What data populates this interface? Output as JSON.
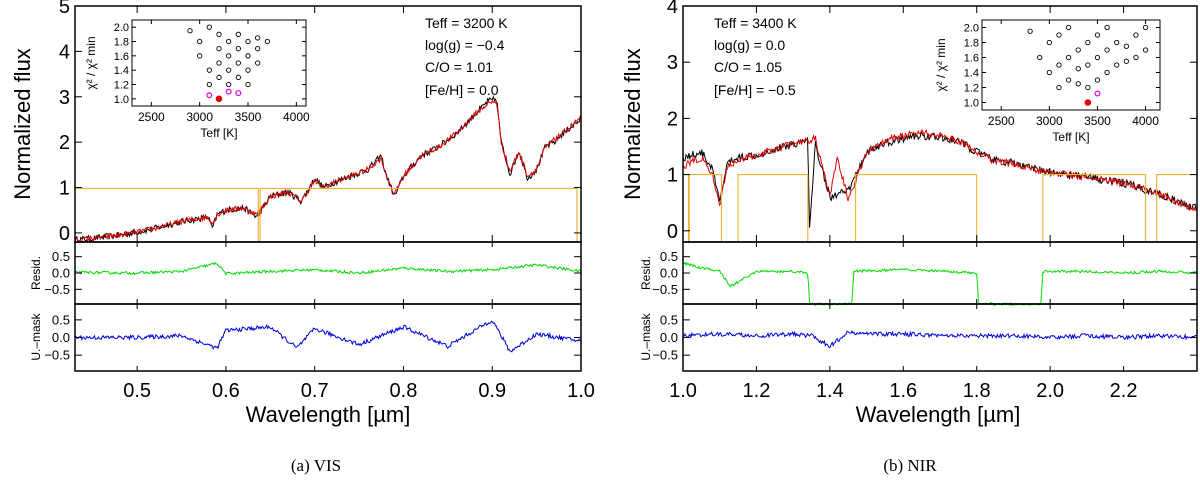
{
  "chart_data": [
    {
      "type": "line",
      "caption": "(a) VIS",
      "xlabel": "Wavelength [µm]",
      "xlim": [
        0.43,
        1.0
      ],
      "xticks": [
        0.5,
        0.6,
        0.7,
        0.8,
        0.9,
        1.0
      ],
      "xtick_labels": [
        "0.5",
        "0.6",
        "0.7",
        "0.8",
        "0.9",
        "1.0"
      ],
      "main": {
        "ylabel": "Normalized flux",
        "ylim": [
          -0.2,
          5
        ],
        "yticks": [
          0,
          1,
          2,
          3,
          4,
          5
        ],
        "ytick_labels": [
          "0",
          "1",
          "2",
          "3",
          "4",
          "5"
        ],
        "series": [
          {
            "name": "observed",
            "color": "#000000",
            "x": [
              0.43,
              0.45,
              0.48,
              0.5,
              0.52,
              0.55,
              0.58,
              0.585,
              0.59,
              0.6,
              0.62,
              0.635,
              0.65,
              0.67,
              0.685,
              0.7,
              0.71,
              0.72,
              0.74,
              0.76,
              0.775,
              0.78,
              0.79,
              0.8,
              0.82,
              0.84,
              0.86,
              0.88,
              0.895,
              0.905,
              0.91,
              0.92,
              0.93,
              0.94,
              0.95,
              0.96,
              0.97,
              0.98,
              1.0
            ],
            "y": [
              -0.15,
              -0.12,
              -0.05,
              0.02,
              0.1,
              0.25,
              0.35,
              0.1,
              0.4,
              0.5,
              0.55,
              0.35,
              0.8,
              0.9,
              0.7,
              1.2,
              1.0,
              1.1,
              1.25,
              1.4,
              1.7,
              1.3,
              0.8,
              1.25,
              1.7,
              1.9,
              2.2,
              2.6,
              2.9,
              2.95,
              2.0,
              1.3,
              1.8,
              1.2,
              1.4,
              1.9,
              2.0,
              2.2,
              2.5
            ]
          },
          {
            "name": "model",
            "color": "#e00000",
            "x": [
              0.43,
              0.45,
              0.48,
              0.5,
              0.52,
              0.55,
              0.58,
              0.585,
              0.59,
              0.6,
              0.62,
              0.635,
              0.65,
              0.67,
              0.685,
              0.7,
              0.71,
              0.72,
              0.74,
              0.76,
              0.775,
              0.78,
              0.79,
              0.8,
              0.82,
              0.84,
              0.86,
              0.88,
              0.895,
              0.905,
              0.91,
              0.92,
              0.93,
              0.94,
              0.95,
              0.96,
              0.97,
              0.98,
              1.0
            ],
            "y": [
              -0.15,
              -0.12,
              -0.05,
              0.02,
              0.1,
              0.25,
              0.35,
              0.2,
              0.4,
              0.5,
              0.55,
              0.4,
              0.8,
              0.9,
              0.7,
              1.15,
              1.0,
              1.1,
              1.25,
              1.4,
              1.65,
              1.3,
              0.85,
              1.25,
              1.7,
              1.9,
              2.2,
              2.6,
              2.85,
              2.9,
              2.0,
              1.35,
              1.8,
              1.25,
              1.4,
              1.9,
              2.05,
              2.2,
              2.55
            ]
          },
          {
            "name": "mask",
            "color": "#f0b030",
            "x": [
              0.43,
              0.6365,
              0.6365,
              0.6385,
              0.6385,
              0.9955,
              0.9955,
              1.0
            ],
            "y": [
              0.98,
              0.98,
              -0.2,
              -0.2,
              0.98,
              0.98,
              -0.2,
              -0.2
            ]
          }
        ],
        "annotations": [
          "Teff = 3200 K",
          "log(g) = −0.4",
          "C/O = 1.01",
          "[Fe/H] = 0.0"
        ]
      },
      "resid": {
        "ylabel": "Resid.",
        "ylim": [
          -0.95,
          0.95
        ],
        "yticks": [
          0.5,
          0.0,
          -0.5
        ],
        "ytick_labels": [
          "0.5",
          "0.0",
          "−0.5"
        ],
        "series": [
          {
            "name": "residual",
            "color": "#00dd00",
            "x": [
              0.43,
              0.5,
              0.55,
              0.59,
              0.6,
              0.65,
              0.7,
              0.75,
              0.8,
              0.85,
              0.9,
              0.95,
              1.0
            ],
            "y": [
              0.02,
              0.0,
              0.05,
              0.3,
              -0.02,
              0.05,
              0.1,
              0.0,
              0.15,
              0.05,
              0.1,
              0.25,
              0.05
            ]
          }
        ]
      },
      "umask": {
        "ylabel": "U.–mask",
        "ylim": [
          -0.95,
          0.95
        ],
        "yticks": [
          0.5,
          0.0,
          -0.5
        ],
        "ytick_labels": [
          "0.5",
          "0.0",
          "−0.5"
        ],
        "series": [
          {
            "name": "unmasked residual",
            "color": "#0000dd",
            "x": [
              0.43,
              0.5,
              0.55,
              0.59,
              0.6,
              0.65,
              0.68,
              0.7,
              0.75,
              0.8,
              0.85,
              0.9,
              0.92,
              0.95,
              1.0
            ],
            "y": [
              0.0,
              0.0,
              0.05,
              -0.3,
              0.2,
              0.3,
              -0.3,
              0.25,
              -0.2,
              0.3,
              -0.25,
              0.5,
              -0.4,
              0.1,
              -0.1
            ]
          }
        ]
      },
      "inset": {
        "xlabel": "Teff [K]",
        "ylabel": "χ² / χ² min",
        "xlim": [
          2300,
          4100
        ],
        "ylim": [
          0.9,
          2.1
        ],
        "xticks": [
          2500,
          3000,
          3500,
          4000
        ],
        "xtick_labels": [
          "2500",
          "3000",
          "3500",
          "4000"
        ],
        "yticks": [
          1.0,
          1.2,
          1.4,
          1.6,
          1.8,
          2.0
        ],
        "ytick_labels": [
          "1.0",
          "1.2",
          "1.4",
          "1.6",
          "1.8",
          "2.0"
        ],
        "open_points": [
          [
            2900,
            1.95
          ],
          [
            3000,
            1.6
          ],
          [
            3000,
            1.8
          ],
          [
            3100,
            1.2
          ],
          [
            3100,
            1.4
          ],
          [
            3100,
            2.0
          ],
          [
            3200,
            1.3
          ],
          [
            3200,
            1.5
          ],
          [
            3200,
            1.7
          ],
          [
            3200,
            1.9
          ],
          [
            3300,
            1.2
          ],
          [
            3300,
            1.4
          ],
          [
            3300,
            1.6
          ],
          [
            3300,
            1.8
          ],
          [
            3400,
            1.3
          ],
          [
            3400,
            1.5
          ],
          [
            3400,
            1.7
          ],
          [
            3400,
            1.9
          ],
          [
            3500,
            1.2
          ],
          [
            3500,
            1.4
          ],
          [
            3500,
            1.6
          ],
          [
            3500,
            1.8
          ],
          [
            3600,
            1.5
          ],
          [
            3600,
            1.7
          ],
          [
            3600,
            1.85
          ],
          [
            3700,
            1.8
          ]
        ],
        "magenta_points": [
          [
            3100,
            1.05
          ],
          [
            3300,
            1.1
          ],
          [
            3400,
            1.08
          ]
        ],
        "filled_point": [
          3200,
          1.0
        ]
      }
    },
    {
      "type": "line",
      "caption": "(b) NIR",
      "xlabel": "Wavelength [µm]",
      "xlim": [
        1.0,
        2.4
      ],
      "xticks": [
        1.0,
        1.2,
        1.4,
        1.6,
        1.8,
        2.0,
        2.2
      ],
      "xtick_labels": [
        "1.0",
        "1.2",
        "1.4",
        "1.6",
        "1.8",
        "2.0",
        "2.2"
      ],
      "main": {
        "ylabel": "Normalized flux",
        "ylim": [
          -0.2,
          4
        ],
        "yticks": [
          0,
          1,
          2,
          3,
          4
        ],
        "ytick_labels": [
          "0",
          "1",
          "2",
          "3",
          "4"
        ],
        "series": [
          {
            "name": "observed",
            "color": "#000000",
            "x": [
              1.0,
              1.05,
              1.08,
              1.1,
              1.12,
              1.15,
              1.2,
              1.25,
              1.3,
              1.34,
              1.345,
              1.36,
              1.4,
              1.45,
              1.5,
              1.55,
              1.6,
              1.65,
              1.7,
              1.75,
              1.8,
              1.85,
              1.9,
              1.95,
              2.0,
              2.05,
              2.1,
              2.15,
              2.2,
              2.25,
              2.3,
              2.35,
              2.4
            ],
            "y": [
              1.3,
              1.4,
              1.1,
              0.5,
              1.2,
              1.3,
              1.35,
              1.45,
              1.55,
              1.6,
              0.0,
              1.55,
              0.6,
              0.7,
              1.4,
              1.55,
              1.65,
              1.7,
              1.65,
              1.6,
              1.4,
              1.25,
              1.2,
              1.1,
              1.05,
              1.0,
              0.95,
              0.9,
              0.85,
              0.75,
              0.65,
              0.5,
              0.4
            ]
          },
          {
            "name": "model",
            "color": "#e00000",
            "x": [
              1.0,
              1.05,
              1.08,
              1.1,
              1.12,
              1.15,
              1.2,
              1.25,
              1.3,
              1.34,
              1.36,
              1.4,
              1.42,
              1.45,
              1.5,
              1.55,
              1.6,
              1.65,
              1.7,
              1.75,
              1.8,
              1.85,
              1.9,
              1.95,
              2.0,
              2.05,
              2.1,
              2.15,
              2.2,
              2.25,
              2.3,
              2.35,
              2.4
            ],
            "y": [
              1.15,
              1.3,
              1.0,
              0.4,
              1.15,
              1.25,
              1.35,
              1.45,
              1.55,
              1.6,
              1.65,
              0.6,
              1.3,
              0.55,
              1.4,
              1.6,
              1.7,
              1.75,
              1.7,
              1.6,
              1.4,
              1.25,
              1.2,
              1.1,
              1.05,
              1.0,
              0.95,
              0.9,
              0.85,
              0.75,
              0.65,
              0.5,
              0.35
            ]
          },
          {
            "name": "mask",
            "color": "#f0b030",
            "x": [
              1.0,
              1.015,
              1.015,
              1.017,
              1.017,
              1.105,
              1.105,
              1.15,
              1.15,
              1.34,
              1.34,
              1.47,
              1.47,
              1.8,
              1.8,
              1.98,
              1.98,
              2.26,
              2.26,
              2.29,
              2.29,
              2.4
            ],
            "y": [
              1.0,
              1.0,
              -0.2,
              -0.2,
              1.0,
              1.0,
              -0.2,
              -0.2,
              1.0,
              1.0,
              -0.2,
              -0.2,
              1.0,
              1.0,
              -0.2,
              -0.2,
              1.0,
              1.0,
              -0.2,
              -0.2,
              1.0,
              1.0
            ]
          }
        ],
        "annotations": [
          "Teff = 3400 K",
          "log(g) = 0.0",
          "C/O = 1.05",
          "[Fe/H] = −0.5"
        ]
      },
      "resid": {
        "ylabel": "Resid.",
        "ylim": [
          -0.95,
          0.95
        ],
        "yticks": [
          0.5,
          0.0,
          -0.5
        ],
        "ytick_labels": [
          "0.5",
          "0.0",
          "−0.5"
        ],
        "series": [
          {
            "name": "residual",
            "color": "#00dd00",
            "x": [
              1.0,
              1.05,
              1.1,
              1.13,
              1.2,
              1.3,
              1.34,
              1.345,
              1.46,
              1.465,
              1.6,
              1.7,
              1.8,
              1.805,
              1.975,
              1.98,
              2.1,
              2.2,
              2.3,
              2.4
            ],
            "y": [
              0.3,
              0.15,
              0.05,
              -0.4,
              0.05,
              0.05,
              0.0,
              -0.95,
              -0.95,
              0.05,
              0.1,
              0.05,
              0.0,
              -0.95,
              -0.95,
              0.05,
              0.05,
              0.0,
              0.05,
              0.0
            ]
          }
        ]
      },
      "umask": {
        "ylabel": "U.–mask",
        "ylim": [
          -0.95,
          0.95
        ],
        "yticks": [
          0.5,
          0.0,
          -0.5
        ],
        "ytick_labels": [
          "0.5",
          "0.0",
          "−0.5"
        ],
        "series": [
          {
            "name": "unmasked residual",
            "color": "#0000dd",
            "x": [
              1.0,
              1.1,
              1.2,
              1.3,
              1.35,
              1.4,
              1.45,
              1.5,
              1.6,
              1.7,
              1.8,
              1.9,
              2.0,
              2.1,
              2.2,
              2.3,
              2.4
            ],
            "y": [
              0.05,
              0.1,
              0.05,
              0.1,
              0.05,
              -0.25,
              0.15,
              0.1,
              0.1,
              0.05,
              0.05,
              0.05,
              0.0,
              0.05,
              0.0,
              0.05,
              0.0
            ]
          }
        ]
      },
      "inset": {
        "xlabel": "Teff [K]",
        "ylabel": "χ² / χ² min",
        "xlim": [
          2300,
          4150
        ],
        "ylim": [
          0.9,
          2.1
        ],
        "xticks": [
          2500,
          3000,
          3500,
          4000
        ],
        "xtick_labels": [
          "2500",
          "3000",
          "3500",
          "4000"
        ],
        "yticks": [
          1.0,
          1.2,
          1.4,
          1.6,
          1.8,
          2.0
        ],
        "ytick_labels": [
          "1.0",
          "1.2",
          "1.4",
          "1.6",
          "1.8",
          "2.0"
        ],
        "open_points": [
          [
            2800,
            1.95
          ],
          [
            2900,
            1.6
          ],
          [
            3000,
            1.4
          ],
          [
            3000,
            1.8
          ],
          [
            3100,
            1.2
          ],
          [
            3100,
            1.5
          ],
          [
            3100,
            1.9
          ],
          [
            3200,
            1.3
          ],
          [
            3200,
            1.6
          ],
          [
            3200,
            2.0
          ],
          [
            3300,
            1.25
          ],
          [
            3300,
            1.45
          ],
          [
            3300,
            1.7
          ],
          [
            3400,
            1.2
          ],
          [
            3400,
            1.5
          ],
          [
            3400,
            1.8
          ],
          [
            3500,
            1.3
          ],
          [
            3500,
            1.6
          ],
          [
            3500,
            1.9
          ],
          [
            3600,
            1.4
          ],
          [
            3600,
            1.7
          ],
          [
            3600,
            2.0
          ],
          [
            3700,
            1.5
          ],
          [
            3700,
            1.8
          ],
          [
            3800,
            1.55
          ],
          [
            3800,
            1.75
          ],
          [
            3900,
            1.6
          ],
          [
            3900,
            1.9
          ],
          [
            4000,
            1.7
          ],
          [
            4000,
            2.0
          ]
        ],
        "magenta_points": [
          [
            3500,
            1.12
          ]
        ],
        "filled_point": [
          3400,
          1.0
        ]
      }
    }
  ]
}
